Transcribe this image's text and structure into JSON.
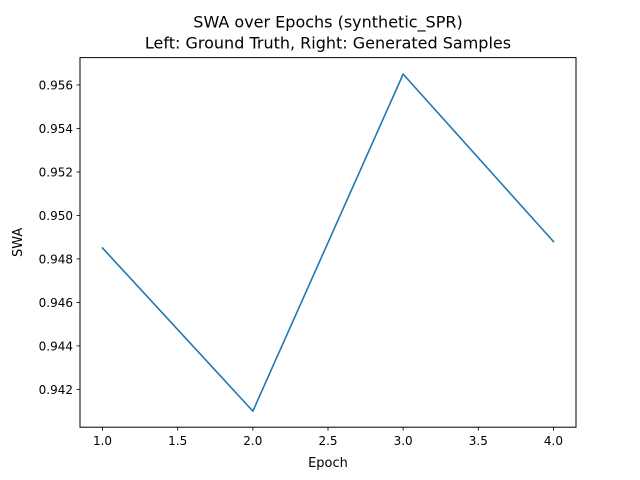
{
  "chart_data": {
    "type": "line",
    "title": "SWA over Epochs (synthetic_SPR)",
    "subtitle": "Left: Ground Truth, Right: Generated Samples",
    "xlabel": "Epoch",
    "ylabel": "SWA",
    "x": [
      1,
      2,
      3,
      4
    ],
    "series": [
      {
        "values": [
          0.9485,
          0.941,
          0.9565,
          0.9488
        ],
        "color": "#1f77b4"
      }
    ],
    "xlim": [
      0.85,
      4.15
    ],
    "ylim": [
      0.94026,
      0.95726
    ],
    "xticks": [
      1.0,
      1.5,
      2.0,
      2.5,
      3.0,
      3.5,
      4.0
    ],
    "xtick_labels": [
      "1.0",
      "1.5",
      "2.0",
      "2.5",
      "3.0",
      "3.5",
      "4.0"
    ],
    "yticks": [
      0.942,
      0.944,
      0.946,
      0.948,
      0.95,
      0.952,
      0.954,
      0.956
    ],
    "ytick_labels": [
      "0.942",
      "0.944",
      "0.946",
      "0.948",
      "0.950",
      "0.952",
      "0.954",
      "0.956"
    ],
    "grid": false,
    "legend": "none"
  }
}
